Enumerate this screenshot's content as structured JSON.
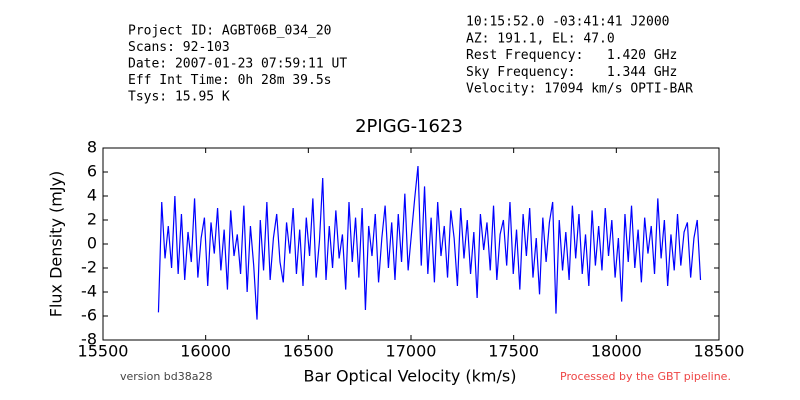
{
  "chart_data": {
    "type": "line",
    "header_left": [
      "Project ID: AGBT06B_034_20",
      "Scans: 92-103",
      "Date: 2007-01-23 07:59:11 UT",
      "Eff Int Time: 0h 28m 39.5s",
      "Tsys: 15.95 K"
    ],
    "header_right": [
      "10:15:52.0 -03:41:41 J2000",
      "AZ: 191.1, EL: 47.0",
      "Rest Frequency:   1.420 GHz",
      "Sky Frequency:    1.344 GHz",
      "Velocity: 17094 km/s OPTI-BAR"
    ],
    "title": "2PIGG-1623",
    "xlabel": "Bar Optical Velocity (km/s)",
    "ylabel": "Flux Density (mJy)",
    "footer_left": "version bd38a28",
    "footer_right": "Processed by the GBT pipeline.",
    "xlim": [
      15500,
      18500
    ],
    "xticks": [
      15500,
      16000,
      16500,
      17000,
      17500,
      18000,
      18500
    ],
    "ylim": [
      -8,
      8
    ],
    "yticks": [
      -8,
      -6,
      -4,
      -2,
      0,
      2,
      4,
      6,
      8
    ],
    "x": [
      15770,
      15786,
      15802,
      15818,
      15834,
      15850,
      15866,
      15882,
      15898,
      15914,
      15930,
      15946,
      15962,
      15978,
      15994,
      16010,
      16026,
      16042,
      16058,
      16074,
      16090,
      16106,
      16122,
      16138,
      16154,
      16170,
      16186,
      16202,
      16218,
      16234,
      16250,
      16266,
      16282,
      16298,
      16314,
      16330,
      16346,
      16362,
      16378,
      16394,
      16410,
      16426,
      16442,
      16458,
      16474,
      16490,
      16506,
      16522,
      16538,
      16554,
      16570,
      16586,
      16602,
      16618,
      16634,
      16650,
      16666,
      16682,
      16698,
      16714,
      16730,
      16746,
      16762,
      16778,
      16794,
      16810,
      16826,
      16842,
      16858,
      16874,
      16890,
      16906,
      16922,
      16938,
      16954,
      16970,
      16986,
      17002,
      17018,
      17034,
      17050,
      17066,
      17082,
      17098,
      17114,
      17130,
      17146,
      17162,
      17178,
      17194,
      17210,
      17226,
      17242,
      17258,
      17274,
      17290,
      17306,
      17322,
      17338,
      17354,
      17370,
      17386,
      17402,
      17418,
      17434,
      17450,
      17466,
      17482,
      17498,
      17514,
      17530,
      17546,
      17562,
      17578,
      17594,
      17610,
      17626,
      17642,
      17658,
      17674,
      17690,
      17706,
      17722,
      17738,
      17754,
      17770,
      17786,
      17802,
      17818,
      17834,
      17850,
      17866,
      17882,
      17898,
      17914,
      17930,
      17946,
      17962,
      17978,
      17994,
      18010,
      18026,
      18042,
      18058,
      18074,
      18090,
      18106,
      18122,
      18138,
      18154,
      18170,
      18186,
      18202,
      18218,
      18234,
      18250,
      18266,
      18282,
      18298,
      18314,
      18330,
      18346,
      18362,
      18378,
      18394,
      18410
    ],
    "series": [
      {
        "color": "#0000ff",
        "values": [
          -5.7,
          3.5,
          -1.2,
          1.5,
          -2.0,
          4.0,
          -2.5,
          2.5,
          -3.0,
          1.0,
          -1.5,
          3.8,
          -2.8,
          0.5,
          2.2,
          -3.5,
          1.8,
          -0.8,
          3.0,
          -2.2,
          1.2,
          -3.8,
          2.8,
          -1.0,
          0.8,
          -2.5,
          3.2,
          -4.0,
          1.5,
          -1.8,
          -6.3,
          2.0,
          -2.2,
          3.5,
          -3.0,
          0.5,
          2.5,
          -1.5,
          -3.2,
          1.8,
          -0.8,
          3.0,
          -2.5,
          1.2,
          -3.5,
          2.2,
          -1.0,
          3.8,
          -2.8,
          0.2,
          5.5,
          -3.0,
          1.5,
          -2.0,
          2.8,
          -1.2,
          0.8,
          -3.8,
          3.5,
          -1.5,
          2.2,
          -2.8,
          3.0,
          -5.5,
          1.5,
          -1.0,
          2.5,
          -3.2,
          0.5,
          3.2,
          -2.0,
          1.8,
          -3.0,
          2.5,
          -1.5,
          4.2,
          -2.2,
          0.8,
          3.8,
          6.5,
          -1.8,
          4.8,
          -2.5,
          2.2,
          -3.2,
          3.5,
          -1.0,
          1.5,
          -2.8,
          2.8,
          0.5,
          -3.5,
          3.0,
          -1.2,
          2.0,
          -2.5,
          1.0,
          -4.5,
          2.5,
          -0.5,
          1.8,
          -2.2,
          3.2,
          -3.0,
          0.8,
          2.0,
          -1.8,
          3.5,
          -2.5,
          1.2,
          -3.8,
          2.5,
          -1.0,
          3.0,
          -2.8,
          0.5,
          -4.2,
          2.2,
          -1.5,
          1.8,
          3.5,
          -5.8,
          2.0,
          -2.2,
          1.0,
          -3.0,
          3.2,
          -1.2,
          2.5,
          -2.5,
          0.8,
          -3.5,
          2.8,
          -1.8,
          1.5,
          -2.2,
          3.0,
          -1.0,
          2.0,
          -2.8,
          0.5,
          -4.8,
          2.5,
          -1.5,
          3.2,
          -2.0,
          1.2,
          -3.2,
          2.2,
          -0.8,
          1.5,
          -2.5,
          3.8,
          -1.2,
          2.0,
          -3.5,
          0.8,
          -2.2,
          2.5,
          -1.8,
          1.0,
          1.8,
          -2.8,
          0.5,
          2.0,
          -3.0
        ]
      }
    ]
  }
}
